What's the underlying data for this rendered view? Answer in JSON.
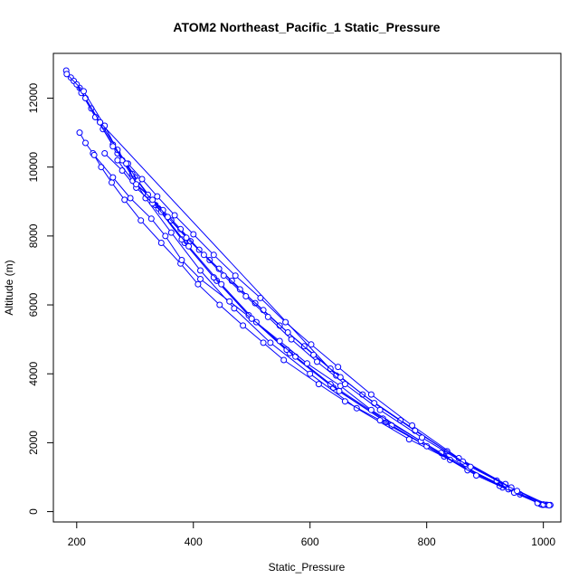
{
  "chart_data": {
    "type": "line",
    "title": "ATOM2 Northeast_Pacific_1 Static_Pressure",
    "xlabel": "Static_Pressure",
    "ylabel": "Altitude (m)",
    "xlim": [
      160,
      1030
    ],
    "ylim": [
      -300,
      13300
    ],
    "x_ticks": [
      200,
      400,
      600,
      800,
      1000
    ],
    "y_ticks": [
      0,
      2000,
      4000,
      6000,
      8000,
      10000,
      12000
    ],
    "grid": false,
    "legend": "none",
    "color": "#0000ff",
    "series": [
      {
        "points": [
          [
            182,
            12800
          ],
          [
            190,
            12600
          ],
          [
            205,
            12300
          ],
          [
            225,
            11700
          ],
          [
            245,
            11100
          ],
          [
            270,
            10400
          ],
          [
            300,
            9700
          ],
          [
            340,
            8800
          ],
          [
            385,
            7800
          ],
          [
            440,
            6700
          ],
          [
            500,
            5600
          ],
          [
            565,
            4600
          ],
          [
            640,
            3600
          ],
          [
            730,
            2600
          ],
          [
            830,
            1600
          ],
          [
            930,
            700
          ],
          [
            1000,
            200
          ]
        ]
      },
      {
        "points": [
          [
            195,
            12500
          ],
          [
            208,
            12150
          ],
          [
            232,
            11450
          ],
          [
            262,
            10650
          ],
          [
            295,
            9800
          ],
          [
            335,
            8900
          ],
          [
            380,
            7900
          ],
          [
            435,
            6800
          ],
          [
            495,
            5700
          ],
          [
            560,
            4700
          ],
          [
            635,
            3700
          ],
          [
            725,
            2700
          ],
          [
            825,
            1700
          ],
          [
            925,
            750
          ],
          [
            995,
            220
          ]
        ]
      },
      {
        "points": [
          [
            200,
            12400
          ],
          [
            215,
            12000
          ],
          [
            240,
            11300
          ],
          [
            270,
            10500
          ],
          [
            305,
            9600
          ],
          [
            345,
            8700
          ],
          [
            392,
            7700
          ],
          [
            448,
            6600
          ],
          [
            508,
            5500
          ],
          [
            575,
            4500
          ],
          [
            650,
            3500
          ],
          [
            740,
            2500
          ],
          [
            840,
            1500
          ],
          [
            940,
            650
          ],
          [
            1005,
            200
          ]
        ]
      },
      {
        "points": [
          [
            183,
            12700
          ],
          [
            212,
            12200
          ],
          [
            248,
            11200
          ],
          [
            278,
            10200
          ],
          [
            318,
            9100
          ],
          [
            362,
            8100
          ],
          [
            412,
            7000
          ],
          [
            470,
            5900
          ],
          [
            532,
            4900
          ],
          [
            600,
            4000
          ],
          [
            680,
            3000
          ],
          [
            770,
            2100
          ],
          [
            870,
            1250
          ],
          [
            960,
            500
          ],
          [
            1012,
            190
          ]
        ]
      },
      {
        "points": [
          [
            240,
            11300
          ],
          [
            645,
            3950
          ]
        ]
      },
      {
        "points": [
          [
            205,
            11000
          ],
          [
            215,
            10700
          ],
          [
            228,
            10400
          ],
          [
            242,
            10000
          ],
          [
            260,
            9550
          ],
          [
            282,
            9050
          ],
          [
            310,
            8450
          ],
          [
            345,
            7800
          ],
          [
            378,
            7200
          ],
          [
            408,
            6600
          ],
          [
            445,
            6000
          ],
          [
            485,
            5400
          ],
          [
            520,
            4900
          ],
          [
            555,
            4400
          ],
          [
            615,
            3700
          ],
          [
            660,
            3200
          ],
          [
            720,
            2650
          ],
          [
            800,
            1900
          ],
          [
            870,
            1200
          ],
          [
            940,
            650
          ],
          [
            995,
            220
          ]
        ]
      },
      {
        "points": [
          [
            230,
            10350
          ],
          [
            262,
            9700
          ],
          [
            292,
            9100
          ],
          [
            328,
            8500
          ],
          [
            352,
            8000
          ],
          [
            380,
            7300
          ],
          [
            412,
            6750
          ],
          [
            462,
            6100
          ],
          [
            500,
            5600
          ],
          [
            548,
            4950
          ],
          [
            595,
            4300
          ],
          [
            652,
            3650
          ],
          [
            705,
            2950
          ],
          [
            790,
            2050
          ],
          [
            885,
            1050
          ],
          [
            950,
            550
          ],
          [
            998,
            200
          ]
        ]
      },
      {
        "points": [
          [
            248,
            10400
          ],
          [
            278,
            9900
          ],
          [
            302,
            9400
          ],
          [
            330,
            8950
          ],
          [
            362,
            8450
          ],
          [
            395,
            7850
          ],
          [
            428,
            7300
          ],
          [
            466,
            6700
          ],
          [
            506,
            6050
          ],
          [
            548,
            5400
          ],
          [
            590,
            4800
          ],
          [
            635,
            4150
          ],
          [
            690,
            3400
          ],
          [
            755,
            2650
          ],
          [
            835,
            1750
          ],
          [
            920,
            900
          ],
          [
            990,
            250
          ]
        ]
      },
      {
        "points": [
          [
            262,
            10600
          ],
          [
            288,
            10100
          ],
          [
            312,
            9650
          ],
          [
            338,
            9150
          ],
          [
            368,
            8600
          ],
          [
            400,
            8050
          ],
          [
            435,
            7450
          ],
          [
            472,
            6850
          ],
          [
            515,
            6200
          ],
          [
            558,
            5500
          ],
          [
            602,
            4850
          ],
          [
            648,
            4200
          ],
          [
            705,
            3400
          ],
          [
            775,
            2500
          ],
          [
            855,
            1550
          ],
          [
            935,
            800
          ],
          [
            1000,
            210
          ]
        ]
      },
      {
        "points": [
          [
            270,
            10200
          ],
          [
            296,
            9600
          ],
          [
            322,
            9200
          ],
          [
            348,
            8750
          ],
          [
            378,
            8200
          ],
          [
            410,
            7600
          ],
          [
            444,
            7050
          ],
          [
            480,
            6450
          ],
          [
            520,
            5850
          ],
          [
            562,
            5200
          ],
          [
            606,
            4550
          ],
          [
            652,
            3900
          ],
          [
            710,
            3150
          ],
          [
            780,
            2350
          ],
          [
            862,
            1450
          ],
          [
            945,
            700
          ],
          [
            1008,
            190
          ]
        ]
      },
      {
        "points": [
          [
            285,
            10100
          ],
          [
            302,
            9500
          ],
          [
            330,
            9050
          ],
          [
            356,
            8550
          ],
          [
            388,
            7950
          ],
          [
            418,
            7450
          ],
          [
            452,
            6850
          ],
          [
            490,
            6250
          ],
          [
            528,
            5650
          ],
          [
            568,
            5000
          ],
          [
            612,
            4350
          ],
          [
            660,
            3700
          ],
          [
            720,
            2950
          ],
          [
            792,
            2150
          ],
          [
            875,
            1300
          ],
          [
            955,
            600
          ],
          [
            1010,
            185
          ]
        ]
      }
    ]
  }
}
